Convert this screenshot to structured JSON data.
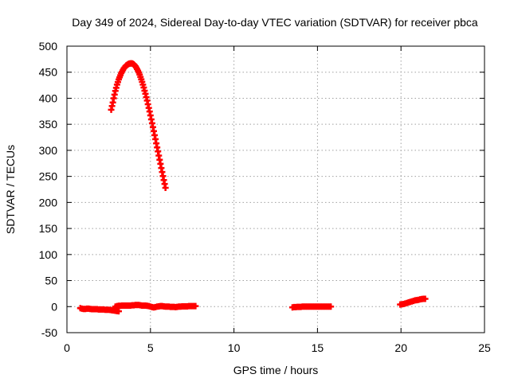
{
  "chart_data": {
    "type": "scatter",
    "title": "Day 349 of 2024, Sidereal Day-to-day VTEC variation (SDTVAR) for receiver pbca",
    "xlabel": "GPS time / hours",
    "ylabel": "SDTVAR / TECUs",
    "xlim": [
      0,
      25
    ],
    "ylim": [
      -50,
      500
    ],
    "xticks": [
      0,
      5,
      10,
      15,
      20,
      25
    ],
    "yticks": [
      -50,
      0,
      50,
      100,
      150,
      200,
      250,
      300,
      350,
      400,
      450,
      500
    ],
    "grid": true,
    "legend": "none",
    "marker": "plus",
    "color": "#ff0000",
    "series": [
      {
        "values": [
          [
            2.65,
            378
          ],
          [
            2.7,
            385
          ],
          [
            2.75,
            392
          ],
          [
            2.8,
            400
          ],
          [
            2.85,
            407
          ],
          [
            2.9,
            414
          ],
          [
            2.95,
            420
          ],
          [
            3.0,
            426
          ],
          [
            3.05,
            431
          ],
          [
            3.1,
            436
          ],
          [
            3.15,
            440
          ],
          [
            3.2,
            444
          ],
          [
            3.25,
            448
          ],
          [
            3.3,
            451
          ],
          [
            3.35,
            454
          ],
          [
            3.4,
            457
          ],
          [
            3.45,
            459
          ],
          [
            3.5,
            461
          ],
          [
            3.55,
            463
          ],
          [
            3.6,
            464
          ],
          [
            3.65,
            465
          ],
          [
            3.7,
            466
          ],
          [
            3.75,
            466.5
          ],
          [
            3.8,
            466.8
          ],
          [
            3.85,
            467
          ],
          [
            3.9,
            466.8
          ],
          [
            3.95,
            466
          ],
          [
            4.0,
            465
          ],
          [
            4.05,
            463.5
          ],
          [
            4.1,
            461.5
          ],
          [
            4.15,
            459
          ],
          [
            4.2,
            456
          ],
          [
            4.25,
            453
          ],
          [
            4.3,
            449.5
          ],
          [
            4.35,
            445.5
          ],
          [
            4.4,
            441
          ],
          [
            4.45,
            436.5
          ],
          [
            4.5,
            431.5
          ],
          [
            4.55,
            426
          ],
          [
            4.6,
            420.5
          ],
          [
            4.65,
            414.5
          ],
          [
            4.7,
            408.5
          ],
          [
            4.75,
            402
          ],
          [
            4.8,
            395.5
          ],
          [
            4.85,
            388.5
          ],
          [
            4.9,
            381.5
          ],
          [
            4.95,
            374.5
          ],
          [
            5.0,
            367
          ],
          [
            5.05,
            359.5
          ],
          [
            5.1,
            352
          ],
          [
            5.15,
            344.5
          ],
          [
            5.2,
            337
          ],
          [
            5.25,
            329
          ],
          [
            5.3,
            321.5
          ],
          [
            5.35,
            313.5
          ],
          [
            5.4,
            305.5
          ],
          [
            5.45,
            298
          ],
          [
            5.5,
            290
          ],
          [
            5.55,
            282
          ],
          [
            5.6,
            274
          ],
          [
            5.65,
            266
          ],
          [
            5.7,
            258.5
          ],
          [
            5.75,
            250.5
          ],
          [
            5.8,
            243
          ],
          [
            5.85,
            235.5
          ],
          [
            5.9,
            228
          ]
        ]
      },
      {
        "values": [
          [
            0.8,
            -3
          ],
          [
            0.9,
            -4
          ],
          [
            1.0,
            -4.5
          ],
          [
            1.1,
            -4.5
          ],
          [
            1.2,
            -4
          ],
          [
            1.3,
            -4
          ],
          [
            1.4,
            -4.5
          ],
          [
            1.5,
            -5
          ],
          [
            1.6,
            -5
          ],
          [
            1.7,
            -5
          ],
          [
            1.8,
            -5
          ],
          [
            1.9,
            -5.5
          ],
          [
            2.0,
            -5.5
          ],
          [
            2.1,
            -5.5
          ],
          [
            2.2,
            -5.5
          ],
          [
            2.3,
            -6
          ],
          [
            2.4,
            -6
          ],
          [
            2.5,
            -6
          ],
          [
            2.6,
            -6.5
          ],
          [
            2.7,
            -7
          ],
          [
            2.8,
            -7.5
          ],
          [
            2.9,
            -8
          ],
          [
            3.0,
            -8.5
          ],
          [
            3.1,
            -9
          ]
        ]
      },
      {
        "values": [
          [
            2.9,
            0
          ],
          [
            3.0,
            1
          ],
          [
            3.1,
            1.5
          ],
          [
            3.2,
            1.5
          ],
          [
            3.3,
            2
          ],
          [
            3.4,
            2
          ],
          [
            3.5,
            2
          ],
          [
            3.6,
            2
          ],
          [
            3.7,
            2
          ],
          [
            3.8,
            2
          ],
          [
            3.9,
            2.5
          ],
          [
            4.0,
            2.5
          ],
          [
            4.1,
            3
          ],
          [
            4.2,
            3
          ],
          [
            4.3,
            3
          ],
          [
            4.4,
            2.5
          ],
          [
            4.5,
            2
          ],
          [
            4.6,
            2
          ],
          [
            4.7,
            2
          ],
          [
            4.8,
            1.5
          ],
          [
            4.9,
            1
          ],
          [
            5.0,
            0
          ],
          [
            5.1,
            -1
          ],
          [
            5.2,
            -1.5
          ],
          [
            5.3,
            -1
          ],
          [
            5.4,
            0
          ],
          [
            5.5,
            0.5
          ],
          [
            5.6,
            1
          ],
          [
            5.7,
            1
          ],
          [
            5.8,
            0.5
          ],
          [
            5.9,
            0
          ],
          [
            6.0,
            0
          ],
          [
            6.1,
            0
          ],
          [
            6.2,
            -0.5
          ],
          [
            6.3,
            -0.5
          ],
          [
            6.4,
            -0.5
          ],
          [
            6.5,
            -1
          ],
          [
            6.6,
            -0.5
          ],
          [
            6.7,
            0
          ],
          [
            6.8,
            0
          ],
          [
            6.9,
            0.5
          ],
          [
            7.0,
            0.5
          ],
          [
            7.1,
            0.5
          ],
          [
            7.2,
            0.5
          ],
          [
            7.3,
            1
          ],
          [
            7.4,
            1
          ],
          [
            7.5,
            1
          ],
          [
            7.6,
            1
          ],
          [
            7.7,
            1
          ]
        ]
      },
      {
        "values": [
          [
            13.5,
            -1.5
          ],
          [
            13.6,
            -1
          ],
          [
            13.7,
            -1
          ],
          [
            13.8,
            -0.5
          ],
          [
            13.9,
            -0.5
          ],
          [
            14.0,
            -0.5
          ],
          [
            14.1,
            0
          ],
          [
            14.2,
            0
          ],
          [
            14.3,
            0
          ],
          [
            14.4,
            0
          ],
          [
            14.5,
            0
          ],
          [
            14.6,
            0
          ],
          [
            14.7,
            0
          ],
          [
            14.8,
            0
          ],
          [
            14.9,
            0
          ],
          [
            15.0,
            0
          ],
          [
            15.1,
            0
          ],
          [
            15.2,
            0
          ],
          [
            15.3,
            0
          ],
          [
            15.4,
            0
          ],
          [
            15.5,
            0
          ],
          [
            15.6,
            0
          ],
          [
            15.7,
            0
          ],
          [
            15.8,
            0
          ]
        ]
      },
      {
        "values": [
          [
            19.95,
            4
          ],
          [
            20.05,
            4.5
          ],
          [
            20.15,
            5
          ],
          [
            20.25,
            6
          ],
          [
            20.35,
            7
          ],
          [
            20.45,
            8
          ],
          [
            20.55,
            9
          ],
          [
            20.65,
            10
          ],
          [
            20.75,
            11
          ],
          [
            20.85,
            12
          ],
          [
            20.95,
            12.5
          ],
          [
            21.05,
            13
          ],
          [
            21.15,
            14
          ],
          [
            21.25,
            14.5
          ],
          [
            21.35,
            15
          ],
          [
            21.45,
            15
          ]
        ]
      }
    ]
  }
}
